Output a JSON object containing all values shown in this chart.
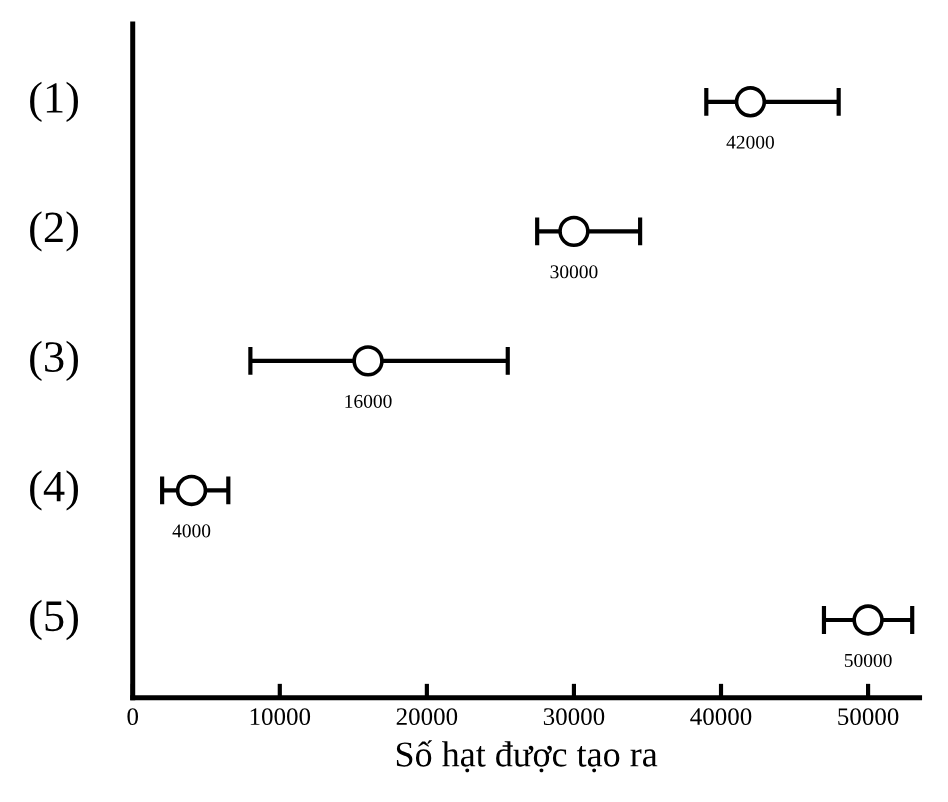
{
  "chart_data": {
    "type": "scatter",
    "orientation": "horizontal",
    "xlabel": "Số hạt được tạo ra",
    "categories": [
      "(1)",
      "(2)",
      "(3)",
      "(4)",
      "(5)"
    ],
    "values": [
      42000,
      30000,
      16000,
      4000,
      50000
    ],
    "errors": [
      [
        39000,
        48000
      ],
      [
        27500,
        34500
      ],
      [
        8000,
        25500
      ],
      [
        2000,
        6500
      ],
      [
        47000,
        53000
      ]
    ],
    "color": "#000000",
    "marker": "circle",
    "data_labels": true,
    "grid": false,
    "xlim": [
      0,
      53500
    ],
    "xticks": [
      0,
      10000,
      20000,
      30000,
      40000,
      50000
    ]
  }
}
